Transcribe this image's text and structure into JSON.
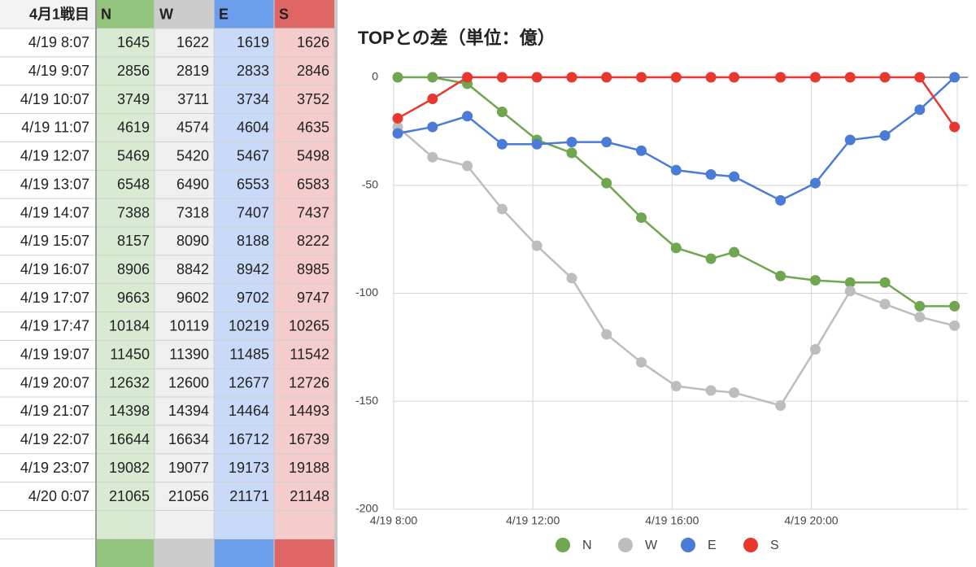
{
  "table": {
    "header": [
      "4月1戦目",
      "N",
      "W",
      "E",
      "S"
    ],
    "rows": [
      [
        "4/19 8:07",
        1645,
        1622,
        1619,
        1626
      ],
      [
        "4/19 9:07",
        2856,
        2819,
        2833,
        2846
      ],
      [
        "4/19 10:07",
        3749,
        3711,
        3734,
        3752
      ],
      [
        "4/19 11:07",
        4619,
        4574,
        4604,
        4635
      ],
      [
        "4/19 12:07",
        5469,
        5420,
        5467,
        5498
      ],
      [
        "4/19 13:07",
        6548,
        6490,
        6553,
        6583
      ],
      [
        "4/19 14:07",
        7388,
        7318,
        7407,
        7437
      ],
      [
        "4/19 15:07",
        8157,
        8090,
        8188,
        8222
      ],
      [
        "4/19 16:07",
        8906,
        8842,
        8942,
        8985
      ],
      [
        "4/19 17:07",
        9663,
        9602,
        9702,
        9747
      ],
      [
        "4/19 17:47",
        10184,
        10119,
        10219,
        10265
      ],
      [
        "4/19 19:07",
        11450,
        11390,
        11485,
        11542
      ],
      [
        "4/19 20:07",
        12632,
        12600,
        12677,
        12726
      ],
      [
        "4/19 21:07",
        14398,
        14394,
        14464,
        14493
      ],
      [
        "4/19 22:07",
        16644,
        16634,
        16712,
        16739
      ],
      [
        "4/19 23:07",
        19082,
        19077,
        19173,
        19188
      ],
      [
        "4/20 0:07",
        21065,
        21056,
        21171,
        21148
      ]
    ]
  },
  "chart_data": {
    "type": "line",
    "title": "TOPとの差（単位：億）",
    "x": [
      8.117,
      9.117,
      10.117,
      11.117,
      12.117,
      13.117,
      14.117,
      15.117,
      16.117,
      17.117,
      17.783,
      19.117,
      20.117,
      21.117,
      22.117,
      23.117,
      24.117
    ],
    "xlim": [
      8,
      24.5
    ],
    "xticks": [
      {
        "value": 8,
        "label": "4/19 8:00"
      },
      {
        "value": 12,
        "label": "4/19 12:00"
      },
      {
        "value": 16,
        "label": "4/19 16:00"
      },
      {
        "value": 20,
        "label": "4/19 20:00"
      }
    ],
    "ylim": [
      -200,
      0
    ],
    "yticks": [
      -200,
      -150,
      -100,
      -50,
      0
    ],
    "grid": true,
    "legend": "bottom",
    "series": [
      {
        "name": "N",
        "color": "#6fa64f",
        "values": [
          0,
          0,
          -3,
          -16,
          -29,
          -35,
          -49,
          -65,
          -79,
          -84,
          -81,
          -92,
          -94,
          -95,
          -95,
          -106,
          -106
        ]
      },
      {
        "name": "W",
        "color": "#bdbdbd",
        "values": [
          -23,
          -37,
          -41,
          -61,
          -78,
          -93,
          -119,
          -132,
          -143,
          -145,
          -146,
          -152,
          -126,
          -99,
          -105,
          -111,
          -115
        ]
      },
      {
        "name": "E",
        "color": "#4a7bd6",
        "values": [
          -26,
          -23,
          -18,
          -31,
          -31,
          -30,
          -30,
          -34,
          -43,
          -45,
          -46,
          -57,
          -49,
          -29,
          -27,
          -15,
          0
        ]
      },
      {
        "name": "S",
        "color": "#e8372e",
        "values": [
          -19,
          -10,
          0,
          0,
          0,
          0,
          0,
          0,
          0,
          0,
          0,
          0,
          0,
          0,
          0,
          0,
          -23
        ]
      }
    ]
  }
}
